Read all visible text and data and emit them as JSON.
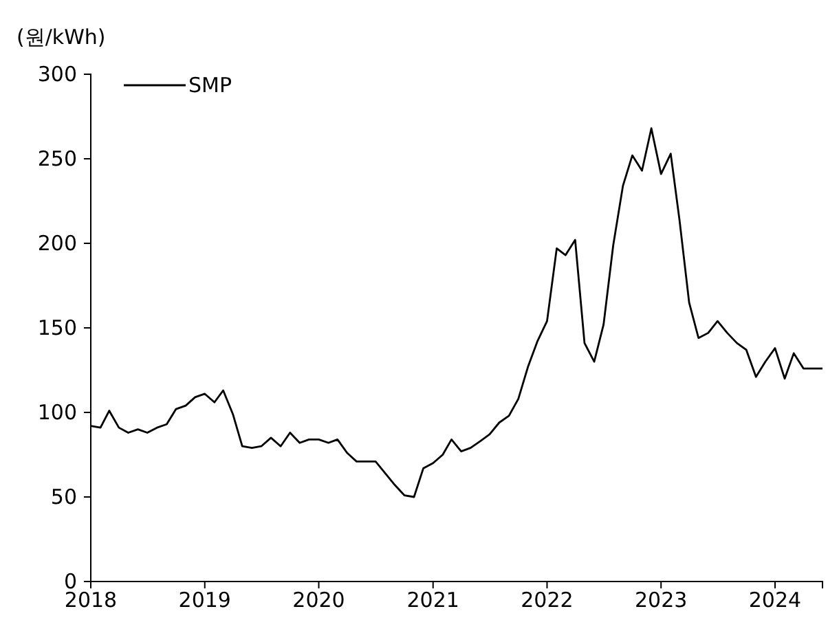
{
  "chart_data": {
    "type": "line",
    "ylabel": "(원/kWh)",
    "x": [
      "2018-01",
      "2018-02",
      "2018-03",
      "2018-04",
      "2018-05",
      "2018-06",
      "2018-07",
      "2018-08",
      "2018-09",
      "2018-10",
      "2018-11",
      "2018-12",
      "2019-01",
      "2019-02",
      "2019-03",
      "2019-04",
      "2019-05",
      "2019-06",
      "2019-07",
      "2019-08",
      "2019-09",
      "2019-10",
      "2019-11",
      "2019-12",
      "2020-01",
      "2020-02",
      "2020-03",
      "2020-04",
      "2020-05",
      "2020-06",
      "2020-07",
      "2020-08",
      "2020-09",
      "2020-10",
      "2020-11",
      "2020-12",
      "2021-01",
      "2021-02",
      "2021-03",
      "2021-04",
      "2021-05",
      "2021-06",
      "2021-07",
      "2021-08",
      "2021-09",
      "2021-10",
      "2021-11",
      "2021-12",
      "2022-01",
      "2022-02",
      "2022-03",
      "2022-04",
      "2022-05",
      "2022-06",
      "2022-07",
      "2022-08",
      "2022-09",
      "2022-10",
      "2022-11",
      "2022-12",
      "2023-01",
      "2023-02",
      "2023-03",
      "2023-04",
      "2023-05",
      "2023-06",
      "2023-07",
      "2023-08",
      "2023-09",
      "2023-10",
      "2023-11",
      "2023-12",
      "2024-01",
      "2024-02",
      "2024-03",
      "2024-04",
      "2024-05",
      "2024-06"
    ],
    "series": [
      {
        "name": "SMP",
        "color": "#000000",
        "values": [
          92,
          91,
          101,
          91,
          88,
          90,
          88,
          91,
          93,
          102,
          104,
          109,
          111,
          106,
          113,
          99,
          80,
          79,
          80,
          85,
          80,
          88,
          82,
          84,
          84,
          82,
          84,
          76,
          71,
          71,
          71,
          64,
          57,
          51,
          50,
          67,
          70,
          75,
          84,
          77,
          79,
          83,
          87,
          94,
          98,
          108,
          127,
          142,
          154,
          197,
          193,
          202,
          141,
          130,
          152,
          199,
          234,
          252,
          243,
          268,
          241,
          253,
          214,
          165,
          144,
          147,
          154,
          147,
          141,
          137,
          121,
          130,
          138,
          120,
          135,
          126,
          126,
          126
        ]
      }
    ],
    "xlim": [
      "2018-01",
      "2024-06"
    ],
    "xticks": [
      "2018",
      "2019",
      "2020",
      "2021",
      "2022",
      "2023",
      "2024"
    ],
    "ylim": [
      0,
      300
    ],
    "yticks": [
      0,
      50,
      100,
      150,
      200,
      250,
      300
    ],
    "legend": "top left",
    "grid": false,
    "marker": "none",
    "line_style": "solid"
  }
}
